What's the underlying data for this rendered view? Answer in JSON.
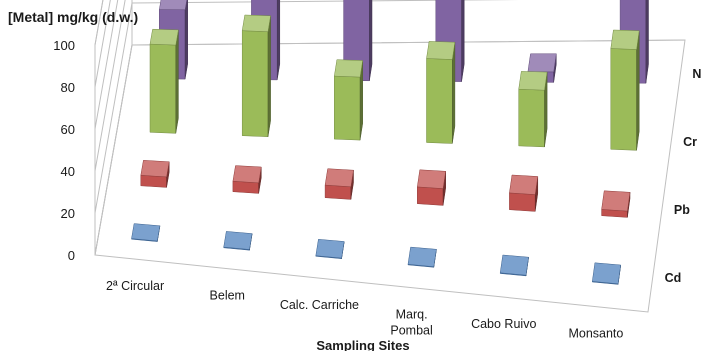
{
  "chart_data": {
    "type": "bar",
    "subtype": "3d-clustered-columns",
    "title": "",
    "ylabel": "[Metal] mg/kg (d.w.)",
    "xlabel": "Sampling Sites",
    "ylim": [
      0,
      100
    ],
    "yticks": [
      "0",
      "20",
      "40",
      "60",
      "80",
      "100"
    ],
    "categories": [
      "2ª Circular",
      "Belem",
      "Calc. Carriche",
      "Marq. Pombal",
      "Cabo Ruivo",
      "Monsanto"
    ],
    "series": [
      {
        "name": "Cd",
        "color": "#4f81bd",
        "values": [
          0.3,
          0.3,
          0.3,
          0.3,
          0.3,
          0.3
        ]
      },
      {
        "name": "Pb",
        "color": "#c0504d",
        "values": [
          5,
          5,
          6,
          8,
          8,
          3
        ]
      },
      {
        "name": "Cr",
        "color": "#9bbb59",
        "values": [
          42,
          50,
          30,
          40,
          27,
          48
        ]
      },
      {
        "name": "N",
        "color": "#8064a2",
        "values": [
          33,
          55,
          45,
          60,
          5,
          40
        ]
      }
    ],
    "grid": true,
    "legend": "series labels on depth axis (right)"
  }
}
